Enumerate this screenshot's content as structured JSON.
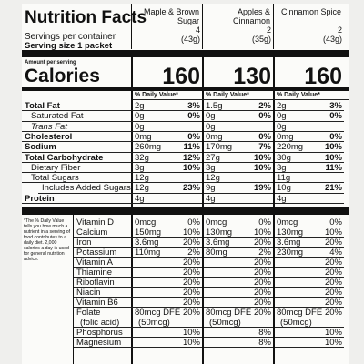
{
  "header": {
    "title": "Nutrition Facts",
    "products": [
      "Maple & Brown Sugar",
      "Apples & Cinnamon",
      "Cinnamon Spice"
    ]
  },
  "servings": {
    "label": "Servings per container",
    "counts": [
      "4",
      "2",
      "2"
    ],
    "weights": [
      "(43g)",
      "(35g)",
      "(43g)"
    ]
  },
  "serving_size": "Serving size 1 packet",
  "amount_label": "Amount per serving",
  "calories": {
    "label": "Calories",
    "values": [
      "160",
      "130",
      "160"
    ]
  },
  "dv_header": "% Daily Value*",
  "nutrients": [
    {
      "name": "Total Fat",
      "bold": true,
      "indent": false,
      "amounts": [
        "2g",
        "1.5g",
        "2g"
      ],
      "dv": [
        "3%",
        "2%",
        "3%"
      ]
    },
    {
      "name": "Saturated Fat",
      "bold": false,
      "indent": true,
      "amounts": [
        "0g",
        "0g",
        "0g"
      ],
      "dv": [
        "0%",
        "0%",
        "0%"
      ]
    },
    {
      "name": "Trans Fat",
      "bold": false,
      "indent": true,
      "italic": true,
      "amounts": [
        "0g",
        "0g",
        "0g"
      ],
      "dv": [
        null,
        null,
        null
      ]
    },
    {
      "name": "Cholesterol",
      "bold": true,
      "indent": false,
      "amounts": [
        "0mg",
        "0mg",
        "0mg"
      ],
      "dv": [
        "0%",
        "0%",
        "0%"
      ]
    },
    {
      "name": "Sodium",
      "bold": true,
      "indent": false,
      "amounts": [
        "260mg",
        "170mg",
        "220mg"
      ],
      "dv": [
        "11%",
        "7%",
        "10%"
      ]
    },
    {
      "name": "Total Carbohydrate",
      "bold": true,
      "indent": false,
      "amounts": [
        "32g",
        "27g",
        "30g"
      ],
      "dv": [
        "12%",
        "10%",
        "10%"
      ]
    },
    {
      "name": "Dietary Fiber",
      "bold": false,
      "indent": true,
      "amounts": [
        "3g",
        "3g",
        "3g"
      ],
      "dv": [
        "10%",
        "10%",
        "11%"
      ]
    },
    {
      "name": "Total Sugars",
      "bold": false,
      "indent": true,
      "amounts": [
        "12g",
        "12g",
        "11g"
      ],
      "dv": [
        null,
        null,
        null
      ]
    },
    {
      "name": "Includes Added Sugars",
      "bold": false,
      "indent": true,
      "double": true,
      "amounts": [
        "12g",
        "9g",
        "10g"
      ],
      "dv": [
        "23%",
        "19%",
        "21%"
      ]
    },
    {
      "name": "Protein",
      "bold": true,
      "indent": false,
      "amounts": [
        "4g",
        "4g",
        "4g"
      ],
      "dv": [
        null,
        null,
        null
      ]
    }
  ],
  "footnote": "*The % Daily Value tells you how much a nutrient in a serving of food contributes to a daily diet. 2,000 calories a day is used for general nutrition advice.",
  "vitamins": [
    {
      "name": "Vitamin D",
      "amounts": [
        "0mcg",
        "0mcg",
        "0mcg"
      ],
      "dv": [
        "0%",
        "0%",
        "0%"
      ]
    },
    {
      "name": "Calcium",
      "amounts": [
        "150mg",
        "130mg",
        "130mg"
      ],
      "dv": [
        "10%",
        "10%",
        "10%"
      ]
    },
    {
      "name": "Iron",
      "amounts": [
        "3.6mg",
        "3.6mg",
        "3.6mg"
      ],
      "dv": [
        "20%",
        "20%",
        "20%"
      ]
    },
    {
      "name": "Potassium",
      "amounts": [
        "110mg",
        "80mg",
        "230mg"
      ],
      "dv": [
        "2%",
        "2%",
        "4%"
      ]
    },
    {
      "name": "Vitamin A",
      "amounts": [
        null,
        null,
        null
      ],
      "dv": [
        "20%",
        "20%",
        "20%"
      ]
    },
    {
      "name": "Thiamine",
      "amounts": [
        null,
        null,
        null
      ],
      "dv": [
        "20%",
        "20%",
        "20%"
      ]
    },
    {
      "name": "Riboflavin",
      "amounts": [
        null,
        null,
        null
      ],
      "dv": [
        "20%",
        "20%",
        "20%"
      ]
    },
    {
      "name": "Niacin",
      "amounts": [
        null,
        null,
        null
      ],
      "dv": [
        "20%",
        "20%",
        "20%"
      ]
    },
    {
      "name": "Vitamin B6",
      "amounts": [
        null,
        null,
        null
      ],
      "dv": [
        "20%",
        "20%",
        "20%"
      ]
    },
    {
      "name": "Folate",
      "sub": "(folic acid)",
      "amounts": [
        "80mcg DFE",
        "80mcg DFE",
        "80mcg DFE"
      ],
      "sub_amounts": [
        "(50mcg)",
        "(50mcg)",
        "(50mcg)"
      ],
      "dv": [
        "20%",
        "20%",
        "20%"
      ]
    },
    {
      "name": "Phosphorus",
      "amounts": [
        null,
        null,
        null
      ],
      "dv": [
        "10%",
        "8%",
        "10%"
      ]
    },
    {
      "name": "Magnesium",
      "amounts": [
        null,
        null,
        null
      ],
      "dv": [
        "10%",
        "8%",
        "10%"
      ]
    }
  ]
}
